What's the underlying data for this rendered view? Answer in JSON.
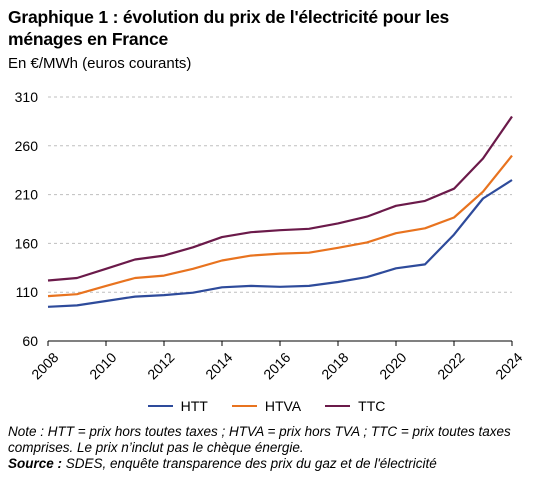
{
  "title": "Graphique 1 : évolution du prix de l'électricité pour les ménages en France",
  "subtitle": "En €/MWh (euros courants)",
  "note": "Note : HTT = prix hors toutes taxes ; HTVA = prix hors TVA ; TTC = prix toutes taxes comprises. Le prix n’inclut pas le chèque énergie.",
  "source_label": "Source :",
  "source_text": " SDES, enquête transparence des prix du gaz et de l'électricité",
  "chart_data": {
    "type": "line",
    "title": "Graphique 1 : évolution du prix de l'électricité pour les ménages en France",
    "xlabel": "",
    "ylabel": "En €/MWh (euros courants)",
    "ylim": [
      60,
      310
    ],
    "yticks": [
      60,
      110,
      160,
      210,
      260,
      310
    ],
    "xticks": [
      2008,
      2010,
      2012,
      2014,
      2016,
      2018,
      2020,
      2022,
      2024
    ],
    "grid": true,
    "legend_position": "bottom",
    "x": [
      2008,
      2009,
      2010,
      2011,
      2012,
      2013,
      2014,
      2015,
      2016,
      2017,
      2018,
      2019,
      2020,
      2021,
      2022,
      2023,
      2024
    ],
    "series": [
      {
        "name": "HTT",
        "color": "#2e4b9b",
        "values": [
          95,
          96.5,
          101,
          105.5,
          107,
          109.5,
          115,
          116.5,
          115.5,
          116.5,
          120.5,
          125.5,
          134.5,
          138.5,
          169,
          206,
          225
        ]
      },
      {
        "name": "HTVA",
        "color": "#e8731f",
        "values": [
          106,
          108,
          116.5,
          124.5,
          127,
          134,
          142.5,
          147.5,
          149.5,
          150.5,
          155.5,
          161,
          170.5,
          175.5,
          186.5,
          213,
          250
        ]
      },
      {
        "name": "TTC",
        "color": "#6b1a4a",
        "values": [
          122,
          124.5,
          134,
          143.5,
          147.5,
          156,
          166.5,
          171.5,
          173.5,
          175,
          180.5,
          187.5,
          198.5,
          203.5,
          216,
          247,
          290
        ]
      }
    ]
  }
}
